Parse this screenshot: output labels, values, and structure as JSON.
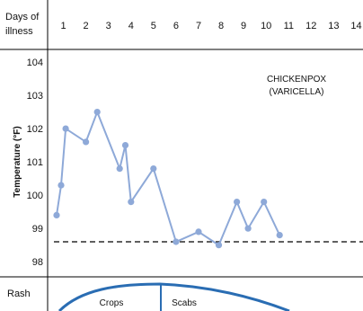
{
  "header": {
    "row_label_line1": "Days of",
    "row_label_line2": "illness",
    "days": [
      "1",
      "2",
      "3",
      "4",
      "5",
      "6",
      "7",
      "8",
      "9",
      "10",
      "11",
      "12",
      "13",
      "14"
    ]
  },
  "annotation": {
    "line1": "CHICKENPOX",
    "line2": "(VARICELLA)"
  },
  "rash": {
    "row_label": "Rash",
    "crops_label": "Crops",
    "scabs_label": "Scabs",
    "colors": {
      "curve": "#2a6db3"
    }
  },
  "colors": {
    "series": "#8ea9d8",
    "grid": "#000000",
    "normal_line": "#000000"
  },
  "chart_data": {
    "type": "line",
    "title": "",
    "xlabel": "Days of illness",
    "ylabel": "Temperature (°F)",
    "xlim": [
      0.3,
      14.3
    ],
    "ylim": [
      97.6,
      104.3
    ],
    "yticks": [
      98,
      99,
      100,
      101,
      102,
      103,
      104
    ],
    "normal_temperature": 98.6,
    "series": [
      {
        "x": [
          0.7,
          0.9,
          1.1,
          2.0,
          2.5,
          3.5,
          3.75,
          4.0,
          5.0,
          6.0,
          7.0,
          7.9,
          8.7,
          9.2,
          9.9,
          10.6
        ],
        "y": [
          99.4,
          100.3,
          102.0,
          101.6,
          102.5,
          100.8,
          101.5,
          99.8,
          100.8,
          98.6,
          98.9,
          98.5,
          99.8,
          99.0,
          99.8,
          98.8
        ]
      }
    ]
  }
}
